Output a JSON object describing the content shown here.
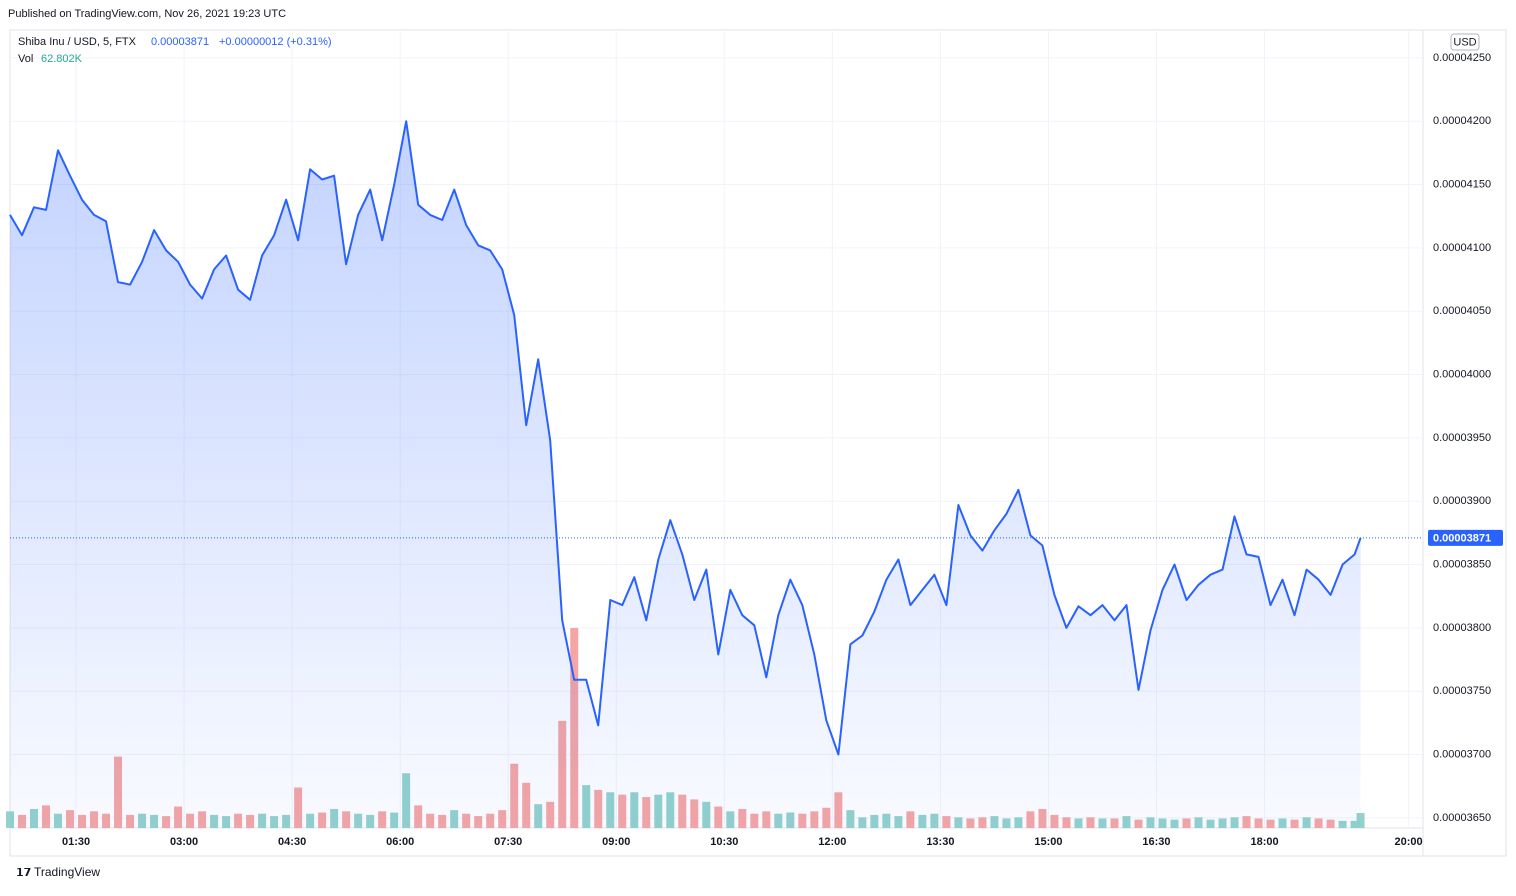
{
  "header": {
    "published": "Published on TradingView.com, Nov 26, 2021 19:23 UTC",
    "footer": "TradingView"
  },
  "chart_data": {
    "type": "line",
    "symbol": "Shiba Inu / USD, 5, FTX",
    "change": "+0.00000012 (+0.31%)",
    "volume_label": "Vol",
    "volume_value": "62.802K",
    "currency": "USD",
    "x": [
      "00:35",
      "00:45",
      "00:55",
      "01:05",
      "01:15",
      "01:25",
      "01:35",
      "01:45",
      "01:55",
      "02:05",
      "02:15",
      "02:25",
      "02:35",
      "02:45",
      "02:55",
      "03:05",
      "03:15",
      "03:25",
      "03:35",
      "03:45",
      "03:55",
      "04:05",
      "04:15",
      "04:25",
      "04:35",
      "04:45",
      "04:55",
      "05:05",
      "05:15",
      "05:25",
      "05:35",
      "05:45",
      "05:55",
      "06:05",
      "06:15",
      "06:25",
      "06:35",
      "06:45",
      "06:55",
      "07:05",
      "07:15",
      "07:25",
      "07:35",
      "07:45",
      "07:55",
      "08:05",
      "08:15",
      "08:25",
      "08:35",
      "08:45",
      "08:55",
      "09:05",
      "09:15",
      "09:25",
      "09:35",
      "09:45",
      "09:55",
      "10:05",
      "10:15",
      "10:25",
      "10:35",
      "10:45",
      "10:55",
      "11:05",
      "11:15",
      "11:25",
      "11:35",
      "11:45",
      "11:55",
      "12:05",
      "12:15",
      "12:25",
      "12:35",
      "12:45",
      "12:55",
      "13:05",
      "13:15",
      "13:25",
      "13:35",
      "13:45",
      "13:55",
      "14:05",
      "14:15",
      "14:25",
      "14:35",
      "14:45",
      "14:55",
      "15:05",
      "15:15",
      "15:25",
      "15:35",
      "15:45",
      "15:55",
      "16:05",
      "16:15",
      "16:25",
      "16:35",
      "16:45",
      "16:55",
      "17:05",
      "17:15",
      "17:25",
      "17:35",
      "17:45",
      "17:55",
      "18:05",
      "18:15",
      "18:25",
      "18:35",
      "18:45",
      "18:55",
      "19:05",
      "19:15",
      "19:20"
    ],
    "series": [
      {
        "name": "Shiba Inu / USD",
        "color": "#2962ff",
        "values": [
          4.126e-05,
          4.11e-05,
          4.132e-05,
          4.13e-05,
          4.177e-05,
          4.157e-05,
          4.138e-05,
          4.126e-05,
          4.121e-05,
          4.073e-05,
          4.071e-05,
          4.089e-05,
          4.114e-05,
          4.098e-05,
          4.089e-05,
          4.071e-05,
          4.06e-05,
          4.083e-05,
          4.094e-05,
          4.067e-05,
          4.059e-05,
          4.094e-05,
          4.11e-05,
          4.138e-05,
          4.106e-05,
          4.162e-05,
          4.154e-05,
          4.157e-05,
          4.087e-05,
          4.126e-05,
          4.146e-05,
          4.106e-05,
          4.15e-05,
          4.2e-05,
          4.134e-05,
          4.126e-05,
          4.122e-05,
          4.146e-05,
          4.118e-05,
          4.102e-05,
          4.098e-05,
          4.083e-05,
          4.047e-05,
          3.96e-05,
          4.012e-05,
          3.948e-05,
          3.806e-05,
          3.759e-05,
          3.759e-05,
          3.723e-05,
          3.822e-05,
          3.818e-05,
          3.84e-05,
          3.806e-05,
          3.854e-05,
          3.885e-05,
          3.858e-05,
          3.822e-05,
          3.846e-05,
          3.779e-05,
          3.83e-05,
          3.81e-05,
          3.802e-05,
          3.761e-05,
          3.81e-05,
          3.838e-05,
          3.818e-05,
          3.779e-05,
          3.727e-05,
          3.7e-05,
          3.787e-05,
          3.794e-05,
          3.813e-05,
          3.838e-05,
          3.854e-05,
          3.818e-05,
          3.83e-05,
          3.842e-05,
          3.818e-05,
          3.897e-05,
          3.873e-05,
          3.861e-05,
          3.877e-05,
          3.89e-05,
          3.909e-05,
          3.873e-05,
          3.865e-05,
          3.826e-05,
          3.8e-05,
          3.817e-05,
          3.81e-05,
          3.818e-05,
          3.806e-05,
          3.818e-05,
          3.751e-05,
          3.798e-05,
          3.83e-05,
          3.85e-05,
          3.822e-05,
          3.834e-05,
          3.842e-05,
          3.846e-05,
          3.888e-05,
          3.858e-05,
          3.856e-05,
          3.818e-05,
          3.838e-05,
          3.81e-05,
          3.846e-05,
          3.838e-05,
          3.826e-05,
          3.85e-05,
          3.858e-05,
          3.871e-05
        ]
      }
    ],
    "volume": {
      "up_color": "#93d2cc",
      "down_color": "#f5a6a4",
      "values": [
        70,
        55,
        80,
        95,
        60,
        75,
        55,
        70,
        60,
        300,
        55,
        60,
        55,
        50,
        90,
        60,
        70,
        55,
        50,
        60,
        55,
        60,
        50,
        55,
        170,
        60,
        65,
        80,
        70,
        60,
        55,
        70,
        65,
        230,
        95,
        60,
        55,
        75,
        60,
        50,
        60,
        75,
        270,
        190,
        100,
        110,
        450,
        840,
        180,
        160,
        150,
        140,
        150,
        130,
        140,
        150,
        140,
        120,
        110,
        90,
        70,
        80,
        60,
        70,
        60,
        65,
        60,
        70,
        85,
        150,
        75,
        45,
        55,
        60,
        50,
        70,
        55,
        60,
        50,
        45,
        40,
        45,
        50,
        40,
        45,
        70,
        80,
        55,
        45,
        40,
        45,
        40,
        40,
        50,
        35,
        45,
        40,
        35,
        40,
        45,
        35,
        40,
        45,
        50,
        40,
        35,
        40,
        35,
        45,
        40,
        35,
        30,
        30,
        62.802
      ]
    },
    "xlim": [
      "00:35",
      "20:12"
    ],
    "xticks": [
      "01:30",
      "03:00",
      "04:30",
      "06:00",
      "07:30",
      "09:00",
      "10:30",
      "12:00",
      "13:30",
      "15:00",
      "16:30",
      "18:00",
      "20:00"
    ],
    "ylim": [
      3.642e-05,
      4.272e-05
    ],
    "yticks": [
      {
        "value": 4.25e-05,
        "label": "0.00004250"
      },
      {
        "value": 4.2e-05,
        "label": "0.00004200"
      },
      {
        "value": 4.15e-05,
        "label": "0.00004150"
      },
      {
        "value": 4.1e-05,
        "label": "0.00004100"
      },
      {
        "value": 4.05e-05,
        "label": "0.00004050"
      },
      {
        "value": 4e-05,
        "label": "0.00004000"
      },
      {
        "value": 3.95e-05,
        "label": "0.00003950"
      },
      {
        "value": 3.9e-05,
        "label": "0.00003900"
      },
      {
        "value": 3.85e-05,
        "label": "0.00003850"
      },
      {
        "value": 3.8e-05,
        "label": "0.00003800"
      },
      {
        "value": 3.75e-05,
        "label": "0.00003750"
      },
      {
        "value": 3.7e-05,
        "label": "0.00003700"
      },
      {
        "value": 3.65e-05,
        "label": "0.00003650"
      }
    ],
    "grid": true
  }
}
